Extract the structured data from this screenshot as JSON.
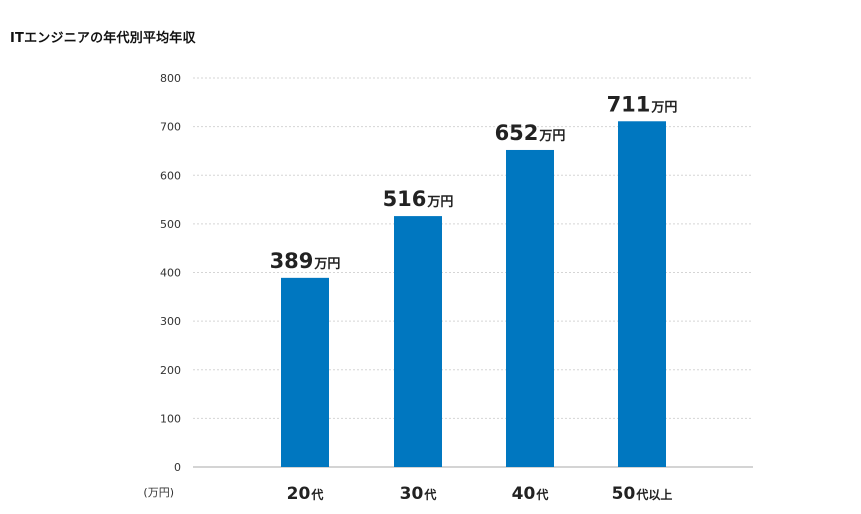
{
  "chart_data": {
    "type": "bar",
    "title": "ITエンジニアの年代別平均年収",
    "y_unit_label": "(万円)",
    "value_unit": "万円",
    "ylim": [
      0,
      800
    ],
    "yticks": [
      0,
      100,
      200,
      300,
      400,
      500,
      600,
      700,
      800
    ],
    "grid": true,
    "categories": [
      {
        "number": "20",
        "suffix": "代"
      },
      {
        "number": "30",
        "suffix": "代"
      },
      {
        "number": "40",
        "suffix": "代"
      },
      {
        "number": "50",
        "suffix": "代以上"
      }
    ],
    "values": [
      389,
      516,
      652,
      711
    ],
    "bar_color": "#0077c0",
    "grid_color": "#d5d5d5",
    "axis_color": "#aaaaaa"
  }
}
